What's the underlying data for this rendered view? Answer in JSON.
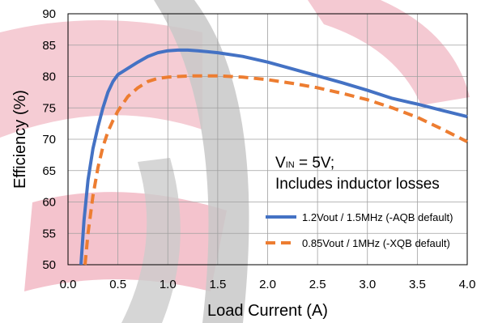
{
  "chart_data": {
    "type": "line",
    "xlabel": "Load Current (A)",
    "ylabel": "Efficiency (%)",
    "xlim": [
      0,
      4
    ],
    "ylim": [
      50,
      90
    ],
    "xticks": [
      0,
      0.5,
      1,
      1.5,
      2,
      2.5,
      3,
      3.5,
      4
    ],
    "xtick_labels": [
      "0.0",
      "0.5",
      "1.0",
      "1.5",
      "2.0",
      "2.5",
      "3.0",
      "3.5",
      "4.0"
    ],
    "yticks": [
      50,
      55,
      60,
      65,
      70,
      75,
      80,
      85,
      90
    ],
    "ytick_labels": [
      "50",
      "55",
      "60",
      "65",
      "70",
      "75",
      "80",
      "85",
      "90"
    ],
    "grid": true,
    "annotation": {
      "line1_main": "V",
      "line1_sub": "IN",
      "line1_rest": " = 5V;",
      "line2": "Includes inductor losses"
    },
    "legend_position": "lower-right",
    "series": [
      {
        "name": "1.2Vout / 1.5MHz (-AQB default)",
        "color": "#4472c4",
        "style": "solid",
        "x": [
          0.13,
          0.16,
          0.2,
          0.25,
          0.3,
          0.35,
          0.4,
          0.45,
          0.5,
          0.6,
          0.7,
          0.8,
          0.9,
          1.0,
          1.1,
          1.2,
          1.3,
          1.5,
          1.75,
          2.0,
          2.25,
          2.5,
          2.75,
          3.0,
          3.25,
          3.5,
          3.75,
          4.0
        ],
        "y": [
          50,
          57,
          63.5,
          68.5,
          72,
          75,
          77.5,
          79.2,
          80.3,
          81.3,
          82.3,
          83.2,
          83.8,
          84.1,
          84.2,
          84.2,
          84.1,
          83.8,
          83.2,
          82.3,
          81.2,
          80.1,
          79.0,
          77.8,
          76.5,
          75.6,
          74.6,
          73.6
        ]
      },
      {
        "name": "0.85Vout / 1MHz (-XQB default)",
        "color": "#ed7d31",
        "style": "dashed",
        "x": [
          0.17,
          0.2,
          0.25,
          0.3,
          0.35,
          0.4,
          0.45,
          0.5,
          0.6,
          0.7,
          0.8,
          0.9,
          1.0,
          1.1,
          1.25,
          1.5,
          1.75,
          2.0,
          2.25,
          2.5,
          2.75,
          3.0,
          3.25,
          3.5,
          3.75,
          4.0
        ],
        "y": [
          50,
          55,
          61,
          65.5,
          68.8,
          71.2,
          73,
          74.5,
          76.8,
          78.2,
          79.2,
          79.7,
          79.9,
          80.0,
          80.1,
          80.1,
          79.9,
          79.5,
          78.9,
          78.2,
          77.3,
          76.3,
          75.0,
          73.5,
          71.6,
          69.6
        ]
      }
    ]
  }
}
